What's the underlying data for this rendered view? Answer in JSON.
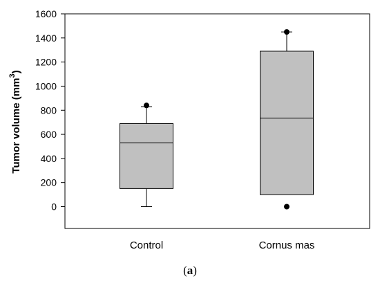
{
  "chart_data": {
    "type": "boxplot",
    "ylabel": "Tumor volume (mm",
    "ylabel_superscript": "3",
    "ylabel_suffix": ")",
    "xlabel": "",
    "ylim": [
      -180,
      1600
    ],
    "yticks": [
      0,
      200,
      400,
      600,
      800,
      1000,
      1200,
      1400,
      1600
    ],
    "grid": false,
    "box_color": "#c0c0c0",
    "line_color": "#000000",
    "groups": [
      {
        "label": "Control",
        "min": 0,
        "q1": 150,
        "median": 530,
        "q3": 690,
        "whisker_high": 830,
        "outliers": [
          840
        ]
      },
      {
        "label": "Cornus mas",
        "min": 100,
        "q1": 100,
        "median": 735,
        "q3": 1290,
        "whisker_high": 1450,
        "outliers": [
          1450,
          0
        ]
      }
    ]
  },
  "caption": {
    "open": "(",
    "letter": "a",
    "close": ")"
  }
}
